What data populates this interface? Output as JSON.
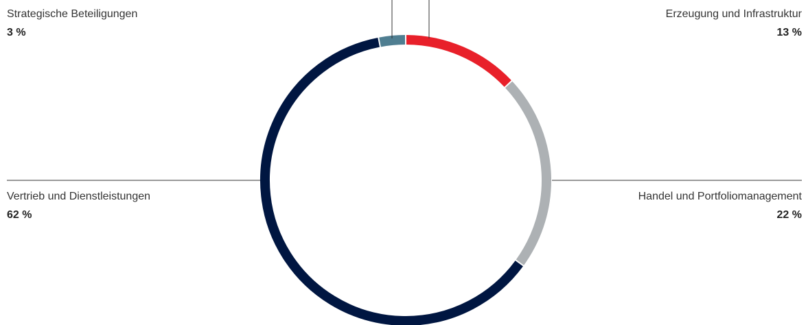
{
  "chart_data": {
    "type": "donut",
    "title": "",
    "legend": "none",
    "slices": [
      {
        "label": "Erzeugung und Infrastruktur",
        "value": 13,
        "value_label": "13 %",
        "color": "#e8202a"
      },
      {
        "label": "Handel und Portfoliomanagement",
        "value": 22,
        "value_label": "22 %",
        "color": "#adb1b4"
      },
      {
        "label": "Vertrieb und Dienstleistungen",
        "value": 62,
        "value_label": "62 %",
        "color": "#001641"
      },
      {
        "label": "Strategische Beteiligungen",
        "value": 3,
        "value_label": "3 %",
        "color": "#4f7e91"
      }
    ]
  }
}
